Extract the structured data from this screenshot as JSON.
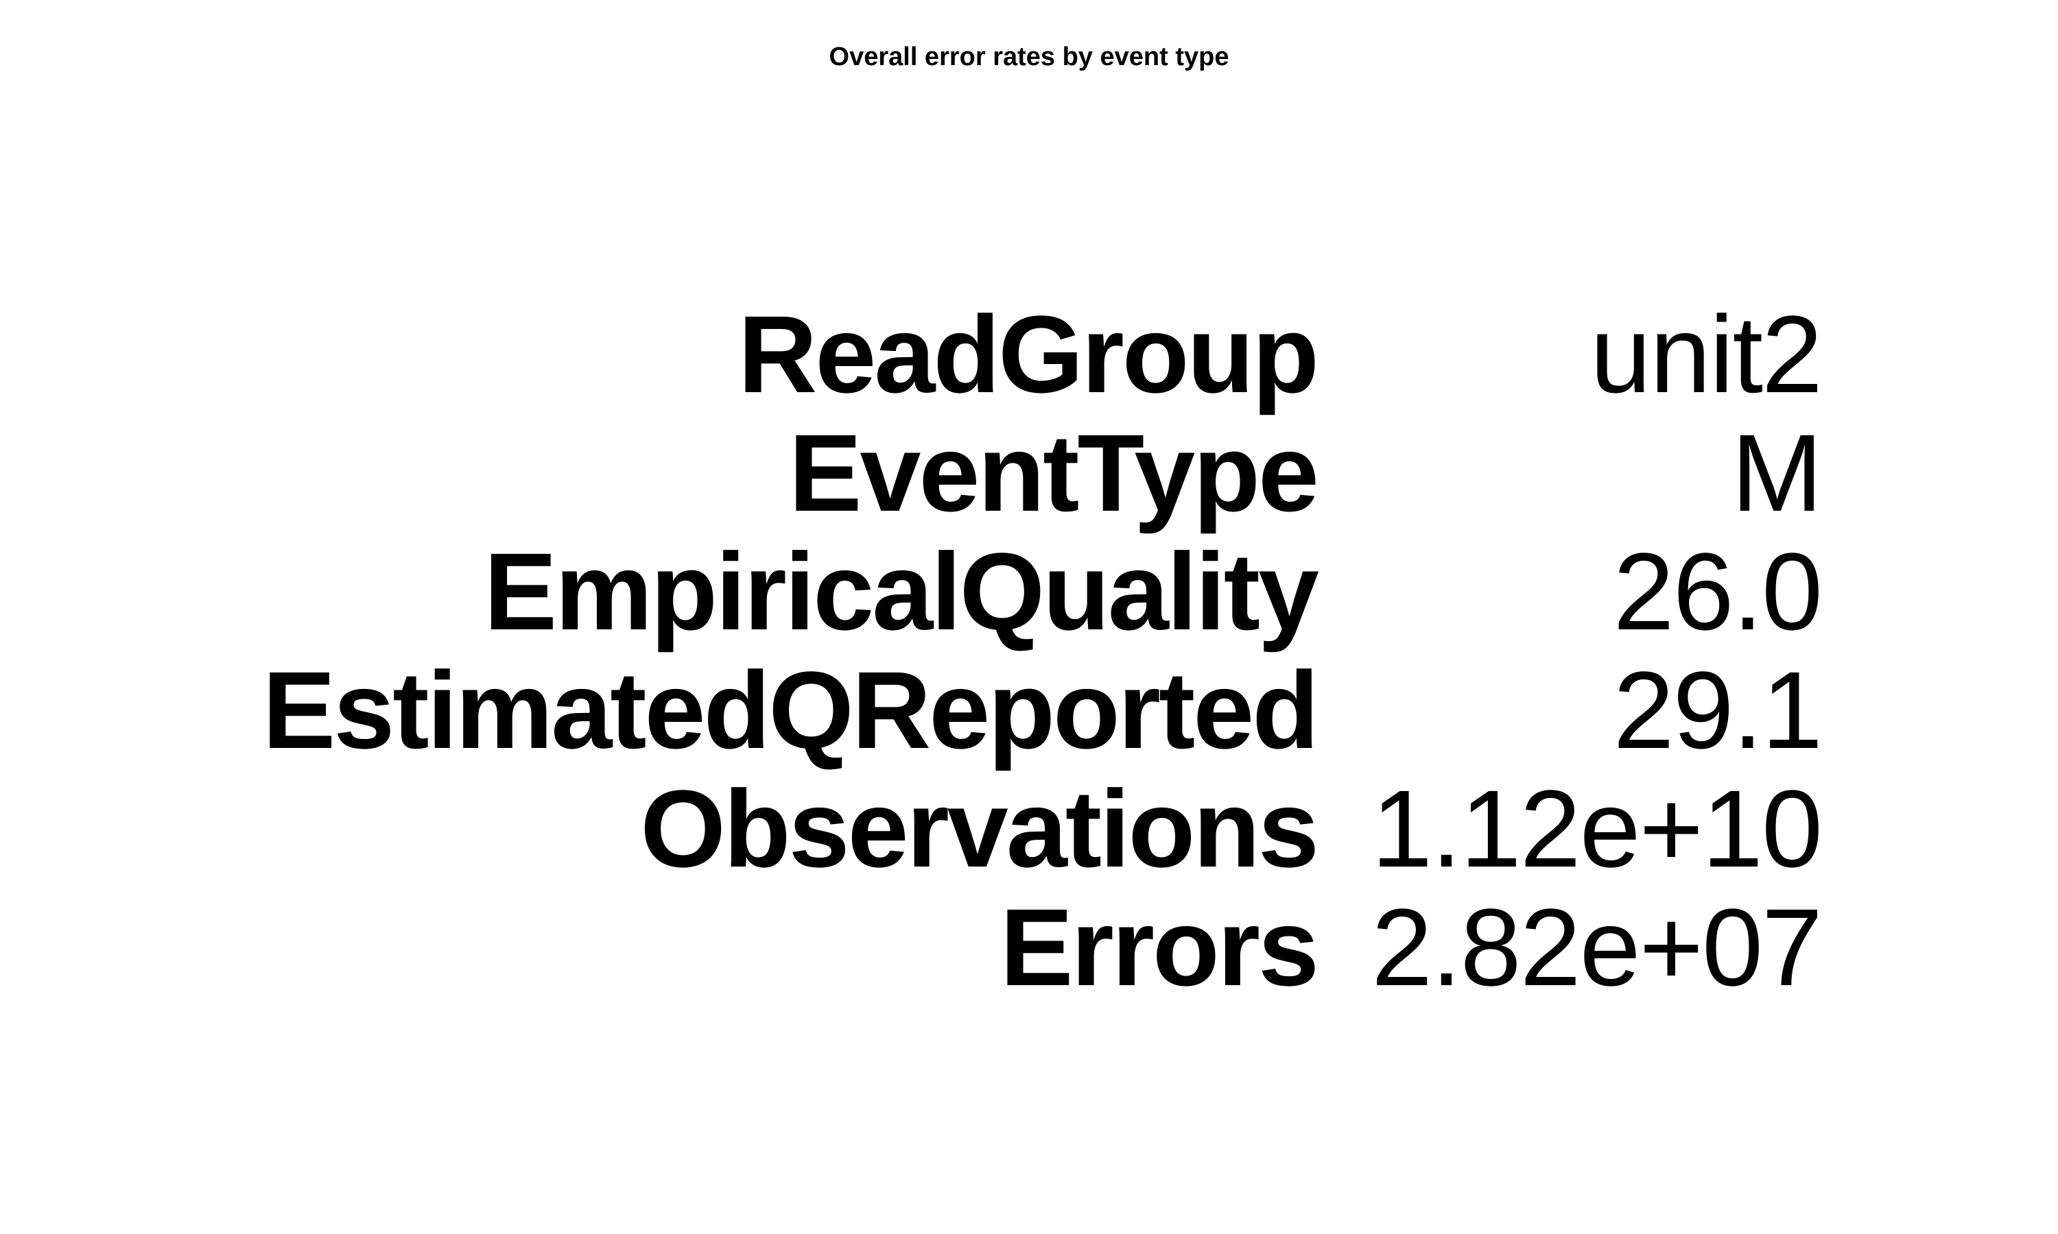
{
  "chart_data": {
    "type": "table",
    "title": "Overall error rates by event type",
    "columns": [
      "field",
      "value"
    ],
    "rows": [
      {
        "label": "ReadGroup",
        "value": "unit2"
      },
      {
        "label": "EventType",
        "value": "M"
      },
      {
        "label": "EmpiricalQuality",
        "value": "26.0"
      },
      {
        "label": "EstimatedQReported",
        "value": "29.1"
      },
      {
        "label": "Observations",
        "value": "1.12e+10"
      },
      {
        "label": "Errors",
        "value": "2.82e+07"
      }
    ]
  }
}
